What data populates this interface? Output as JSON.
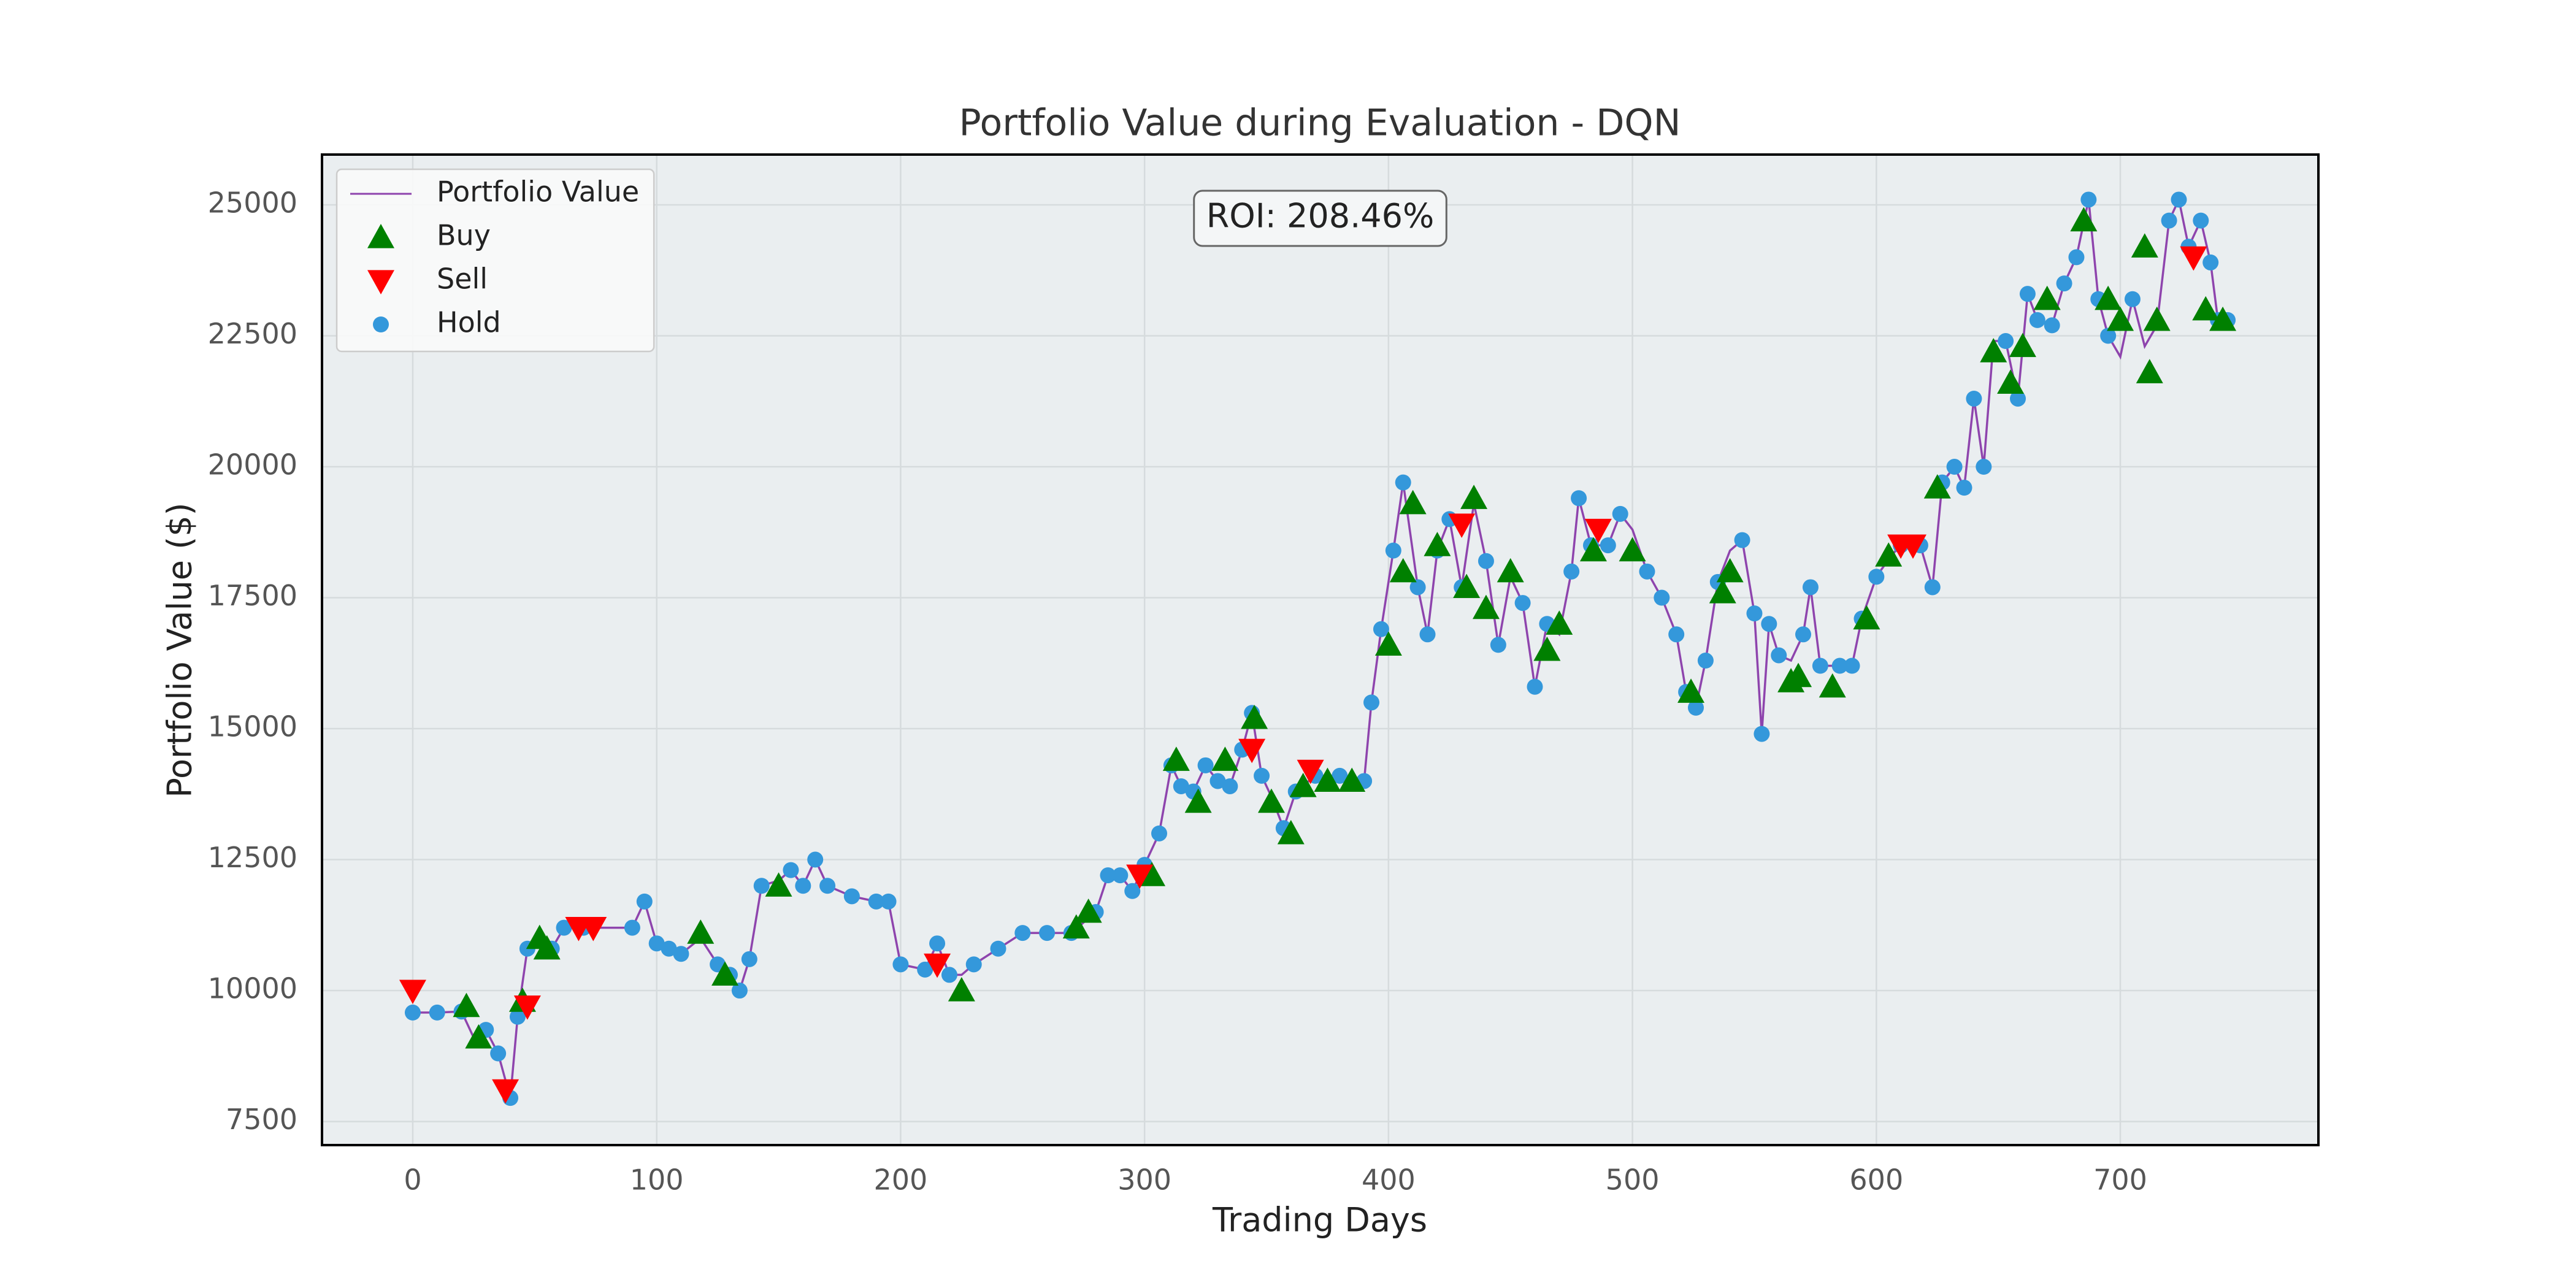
{
  "chart_data": {
    "type": "scatter",
    "title": "Portfolio Value during Evaluation - DQN",
    "xlabel": "Trading Days",
    "ylabel": "Portfolio Value ($)",
    "annotation": "ROI: 208.46%",
    "xlim": [
      -37.2,
      781.2
    ],
    "ylim": [
      7050,
      25960
    ],
    "xticks": [
      0,
      100,
      200,
      300,
      400,
      500,
      600,
      700
    ],
    "yticks": [
      7500,
      10000,
      12500,
      15000,
      17500,
      20000,
      22500,
      25000
    ],
    "grid": true,
    "legend": "upper left",
    "series": [
      {
        "name": "Portfolio Value",
        "marker": "line",
        "color": "#8e44ad",
        "x": [
          0,
          10,
          20,
          25,
          30,
          35,
          40,
          43,
          47,
          52,
          57,
          62,
          70,
          90,
          95,
          100,
          105,
          110,
          118,
          125,
          130,
          134,
          138,
          143,
          150,
          155,
          160,
          165,
          170,
          180,
          190,
          195,
          200,
          210,
          215,
          220,
          225,
          230,
          240,
          250,
          260,
          270,
          280,
          285,
          290,
          295,
          300,
          306,
          311,
          315,
          320,
          325,
          330,
          335,
          340,
          344,
          348,
          352,
          357,
          362,
          370,
          380,
          390,
          393,
          397,
          402,
          406,
          412,
          416,
          420,
          425,
          430,
          435,
          440,
          445,
          450,
          455,
          460,
          465,
          470,
          475,
          478,
          483,
          490,
          495,
          500,
          506,
          512,
          518,
          522,
          526,
          530,
          535,
          540,
          545,
          550,
          553,
          556,
          560,
          565,
          570,
          573,
          577,
          585,
          590,
          594,
          600,
          606,
          610,
          618,
          623,
          627,
          632,
          636,
          640,
          644,
          648,
          653,
          658,
          662,
          666,
          672,
          677,
          682,
          687,
          691,
          695,
          700,
          705,
          710,
          715,
          720,
          724,
          728,
          733,
          737,
          740,
          744
        ],
        "values": [
          9580,
          9580,
          9600,
          9100,
          9250,
          8800,
          7950,
          9500,
          10800,
          11000,
          10800,
          11200,
          11200,
          11200,
          11700,
          10900,
          10800,
          10700,
          11000,
          10500,
          10300,
          10000,
          10600,
          12000,
          12100,
          12300,
          12000,
          12500,
          12000,
          11800,
          11700,
          11700,
          10500,
          10400,
          10900,
          10300,
          10300,
          10500,
          10800,
          11100,
          11100,
          11100,
          11500,
          12200,
          12200,
          11900,
          12400,
          13000,
          14300,
          13900,
          13800,
          14300,
          14000,
          13900,
          14600,
          15300,
          14100,
          13700,
          13100,
          13800,
          14100,
          14100,
          14000,
          15500,
          16900,
          18400,
          19700,
          17700,
          16800,
          18400,
          19000,
          17700,
          19300,
          18200,
          16600,
          17900,
          17400,
          15800,
          17000,
          16800,
          18000,
          19400,
          18500,
          18500,
          19100,
          18800,
          18000,
          17500,
          16800,
          15700,
          15400,
          16300,
          17800,
          18400,
          18600,
          17200,
          14900,
          17000,
          16400,
          16300,
          16800,
          17700,
          16200,
          16200,
          16200,
          17100,
          17900,
          18300,
          18500,
          18500,
          17700,
          19700,
          20000,
          19600,
          21300,
          20000,
          22400,
          22400,
          21300,
          23300,
          22800,
          22700,
          23500,
          24000,
          25100,
          23200,
          22500,
          22100,
          23200,
          22300,
          22700,
          24700,
          25100,
          24200,
          24700,
          23900,
          22800,
          22800
        ]
      },
      {
        "name": "Buy",
        "marker": "^",
        "color": "#008000",
        "x": [
          22,
          27,
          45,
          52,
          55,
          118,
          128,
          150,
          225,
          272,
          277,
          303,
          313,
          322,
          333,
          345,
          352,
          360,
          365,
          375,
          385,
          400,
          406,
          410,
          420,
          432,
          435,
          440,
          450,
          465,
          470,
          484,
          500,
          524,
          537,
          540,
          565,
          568,
          582,
          596,
          605,
          625,
          648,
          655,
          660,
          670,
          685,
          695,
          700,
          710,
          712,
          715,
          735,
          742
        ],
        "values": [
          9700,
          9100,
          9800,
          11000,
          10800,
          11100,
          10300,
          12000,
          10000,
          11200,
          11500,
          12200,
          14400,
          13600,
          14400,
          15200,
          13600,
          13000,
          13900,
          14000,
          14000,
          16600,
          18000,
          19300,
          18500,
          17700,
          19400,
          17300,
          18000,
          16500,
          17000,
          18400,
          18400,
          15700,
          17600,
          18000,
          15900,
          16000,
          15800,
          17100,
          18300,
          19600,
          22200,
          21600,
          22300,
          23200,
          24700,
          23200,
          22800,
          24200,
          21800,
          22800,
          23000,
          22800
        ]
      },
      {
        "name": "Sell",
        "marker": "v",
        "color": "#ff0000",
        "x": [
          0,
          38,
          47,
          68,
          74,
          215,
          298,
          344,
          368,
          430,
          486,
          610,
          615,
          730
        ],
        "values": [
          10000,
          8100,
          9700,
          11200,
          11200,
          10500,
          12200,
          14600,
          14200,
          18900,
          18800,
          18500,
          18500,
          24000
        ]
      },
      {
        "name": "Hold",
        "marker": "o",
        "color": "#3498db",
        "x": [
          0,
          10,
          20,
          30,
          35,
          40,
          43,
          47,
          57,
          62,
          70,
          90,
          95,
          100,
          105,
          110,
          125,
          130,
          134,
          138,
          143,
          155,
          160,
          165,
          170,
          180,
          190,
          195,
          200,
          210,
          215,
          220,
          230,
          240,
          250,
          260,
          270,
          280,
          285,
          290,
          295,
          300,
          306,
          311,
          315,
          320,
          325,
          330,
          335,
          340,
          344,
          348,
          357,
          362,
          370,
          380,
          390,
          393,
          397,
          402,
          406,
          412,
          416,
          420,
          425,
          430,
          440,
          445,
          455,
          460,
          465,
          475,
          478,
          483,
          490,
          495,
          506,
          512,
          518,
          522,
          526,
          530,
          535,
          545,
          550,
          553,
          556,
          560,
          570,
          573,
          577,
          585,
          590,
          594,
          600,
          610,
          618,
          623,
          627,
          632,
          636,
          640,
          644,
          653,
          658,
          662,
          666,
          672,
          677,
          682,
          687,
          691,
          695,
          705,
          720,
          724,
          728,
          733,
          737,
          740,
          744
        ],
        "values": [
          9580,
          9580,
          9600,
          9250,
          8800,
          7950,
          9500,
          10800,
          10800,
          11200,
          11200,
          11200,
          11700,
          10900,
          10800,
          10700,
          10500,
          10300,
          10000,
          10600,
          12000,
          12300,
          12000,
          12500,
          12000,
          11800,
          11700,
          11700,
          10500,
          10400,
          10900,
          10300,
          10500,
          10800,
          11100,
          11100,
          11100,
          11500,
          12200,
          12200,
          11900,
          12400,
          13000,
          14300,
          13900,
          13800,
          14300,
          14000,
          13900,
          14600,
          15300,
          14100,
          13100,
          13800,
          14100,
          14100,
          14000,
          15500,
          16900,
          18400,
          19700,
          17700,
          16800,
          18400,
          19000,
          17700,
          18200,
          16600,
          17400,
          15800,
          17000,
          18000,
          19400,
          18500,
          18500,
          19100,
          18000,
          17500,
          16800,
          15700,
          15400,
          16300,
          17800,
          18600,
          17200,
          14900,
          17000,
          16400,
          16800,
          17700,
          16200,
          16200,
          16200,
          17100,
          17900,
          18500,
          18500,
          17700,
          19700,
          20000,
          19600,
          21300,
          20000,
          22400,
          21300,
          23300,
          22800,
          22700,
          23500,
          24000,
          25100,
          23200,
          22500,
          23200,
          24700,
          25100,
          24200,
          24700,
          23900,
          22800,
          22800
        ]
      }
    ]
  }
}
